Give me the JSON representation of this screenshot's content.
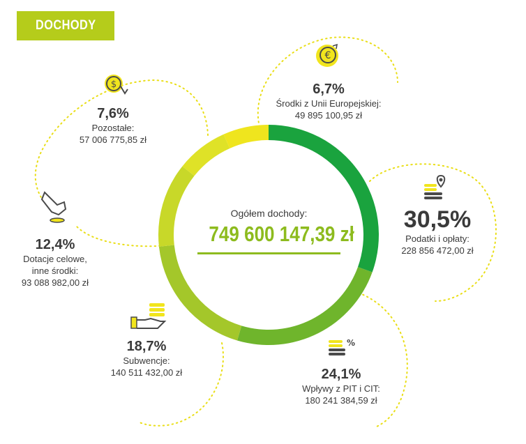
{
  "header": {
    "title": "DOCHODY"
  },
  "center": {
    "label": "Ogółem dochody:",
    "total": "749 600 147,39 zł"
  },
  "colors": {
    "badge": "#b5cc1b",
    "dotted": "#e9de16",
    "total": "#8dbb1e",
    "icon_yellow": "#f1e51d",
    "icon_dark": "#4a4a4a"
  },
  "chart_data": {
    "type": "pie",
    "style": "donut",
    "title": "DOCHODY",
    "total_label": "Ogółem dochody:",
    "total": "749 600 147,39 zł",
    "slices": [
      {
        "name": "Podatki i opłaty:",
        "percent": "30,5%",
        "value_pct": 30.5,
        "amount": "228 856 472,00 zł",
        "color": "#1aa33e",
        "icon": "coins-map-pin-icon"
      },
      {
        "name": "Wpływy z PIT i CIT:",
        "percent": "24,1%",
        "value_pct": 24.1,
        "amount": "180 241 384,59 zł",
        "color": "#6fb52c",
        "icon": "coins-percent-icon"
      },
      {
        "name": "Subwencje:",
        "percent": "18,7%",
        "value_pct": 18.7,
        "amount": "140 511 432,00 zł",
        "color": "#a4c72a",
        "icon": "hand-coins-icon"
      },
      {
        "name": "Dotacje celowe, inne środki:",
        "percent": "12,4%",
        "value_pct": 12.4,
        "amount": "93 088 982,00 zł",
        "color": "#c8d829",
        "icon": "hand-coin-icon"
      },
      {
        "name": "Pozostałe:",
        "percent": "7,6%",
        "value_pct": 7.6,
        "amount": "57 006 775,85 zł",
        "color": "#dfe227",
        "icon": "dollar-cycle-icon"
      },
      {
        "name": "Środki z Unii Europejskiej:",
        "percent": "6,7%",
        "value_pct": 6.7,
        "amount": "49 895 100,95 zł",
        "color": "#efe51e",
        "icon": "euro-icon"
      }
    ]
  }
}
